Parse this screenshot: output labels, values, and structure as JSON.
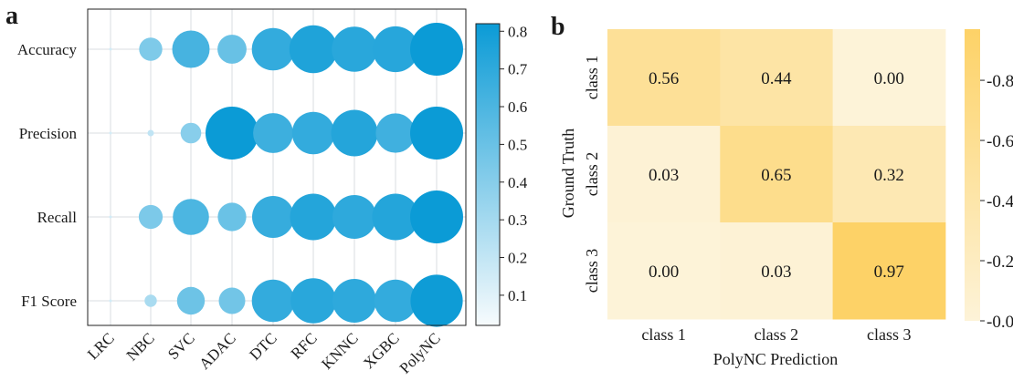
{
  "chart_data": [
    {
      "panel": "a",
      "type": "bubble",
      "categories": [
        "LRC",
        "NBC",
        "SVC",
        "ADAC",
        "DTC",
        "RFC",
        "KNNC",
        "XGBC",
        "PolyNC"
      ],
      "metrics": [
        "Accuracy",
        "Precision",
        "Recall",
        "F1 Score"
      ],
      "values": [
        [
          0.03,
          0.36,
          0.58,
          0.45,
          0.66,
          0.74,
          0.7,
          0.71,
          0.82
        ],
        [
          0.02,
          0.1,
          0.32,
          0.82,
          0.62,
          0.66,
          0.72,
          0.61,
          0.82
        ],
        [
          0.03,
          0.37,
          0.56,
          0.44,
          0.65,
          0.72,
          0.68,
          0.72,
          0.82
        ],
        [
          0.03,
          0.19,
          0.43,
          0.41,
          0.66,
          0.7,
          0.68,
          0.66,
          0.81
        ]
      ],
      "colorbar": {
        "ticks": [
          "0.1",
          "0.2",
          "0.3",
          "0.4",
          "0.5",
          "0.6",
          "0.7",
          "0.8"
        ],
        "range": [
          0.02,
          0.82
        ],
        "low_color": "#f7fbfd",
        "high_color": "#0b9bd6"
      },
      "grid": true
    },
    {
      "panel": "b",
      "type": "heatmap",
      "xlabel": "PolyNC Prediction",
      "ylabel": "Ground Truth",
      "x_categories": [
        "class 1",
        "class 2",
        "class 3"
      ],
      "y_categories": [
        "class 1",
        "class 2",
        "class 3"
      ],
      "values": [
        [
          0.56,
          0.44,
          0.0
        ],
        [
          0.03,
          0.65,
          0.32
        ],
        [
          0.0,
          0.03,
          0.97
        ]
      ],
      "labels": [
        [
          "0.56",
          "0.44",
          "0.00"
        ],
        [
          "0.03",
          "0.65",
          "0.32"
        ],
        [
          "0.00",
          "0.03",
          "0.97"
        ]
      ],
      "colorbar": {
        "ticks": [
          "0.0",
          "0.2",
          "0.4",
          "0.6",
          "0.8"
        ],
        "range": [
          0,
          0.97
        ],
        "low_color": "#fdf3d8",
        "high_color": "#fdd267"
      }
    }
  ],
  "panel_labels": [
    "a",
    "b"
  ]
}
